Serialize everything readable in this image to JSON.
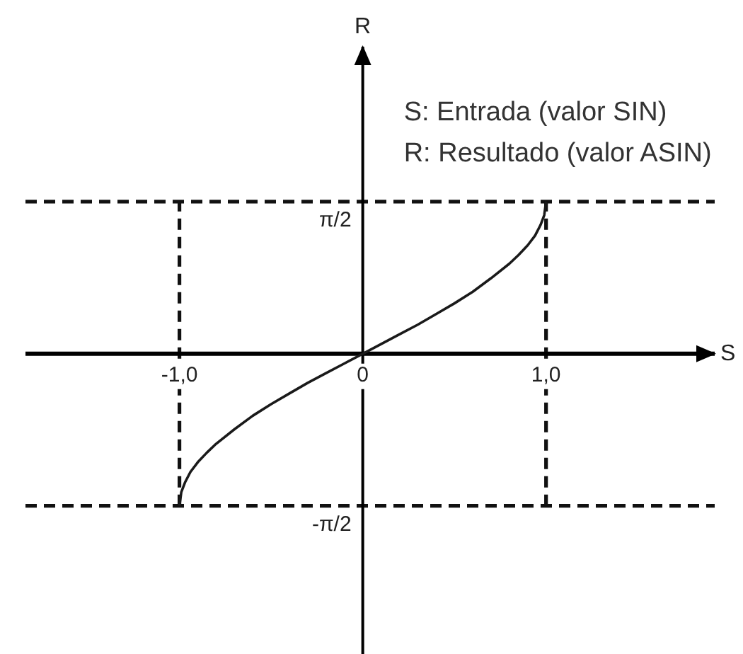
{
  "chart_data": {
    "type": "line",
    "x": [
      -1,
      -0.99,
      -0.97,
      -0.94,
      -0.9,
      -0.85,
      -0.8,
      -0.7,
      -0.6,
      -0.5,
      -0.4,
      -0.3,
      -0.2,
      -0.1,
      0,
      0.1,
      0.2,
      0.3,
      0.4,
      0.5,
      0.6,
      0.7,
      0.8,
      0.85,
      0.9,
      0.94,
      0.97,
      0.99,
      1
    ],
    "values": [
      -1.57,
      -1.43,
      -1.33,
      -1.22,
      -1.12,
      -1.02,
      -0.93,
      -0.78,
      -0.64,
      -0.52,
      -0.41,
      -0.3,
      -0.2,
      -0.1,
      0,
      0.1,
      0.2,
      0.3,
      0.41,
      0.52,
      0.64,
      0.78,
      0.93,
      1.02,
      1.12,
      1.22,
      1.33,
      1.43,
      1.57
    ],
    "color": "#1a1a1a",
    "marker": "none",
    "xlabel": "S",
    "ylabel": "R",
    "xlim": [
      -1.84,
      1.92
    ],
    "ylim": [
      -3.1,
      3.17
    ],
    "xticks": [
      {
        "value": -1,
        "label": "-1,0"
      },
      0,
      {
        "value": 1,
        "label": "1,0"
      }
    ],
    "yticks": [
      {
        "value": 1.57,
        "label": "π/2"
      },
      {
        "value": -1.57,
        "label": "-π/2"
      }
    ],
    "ref_lines": [
      {
        "axis": "y",
        "value": 1.57,
        "line_style": "dashed"
      },
      {
        "axis": "y",
        "value": -1.57,
        "line_style": "dashed"
      },
      {
        "axis": "x",
        "value": -1,
        "line_style": "dashed"
      },
      {
        "axis": "x",
        "value": 1,
        "line_style": "dashed"
      }
    ],
    "annotations": [
      "S: Entrada (valor SIN)",
      "R: Resultado (valor ASIN)"
    ],
    "grid": false,
    "legend": false
  }
}
